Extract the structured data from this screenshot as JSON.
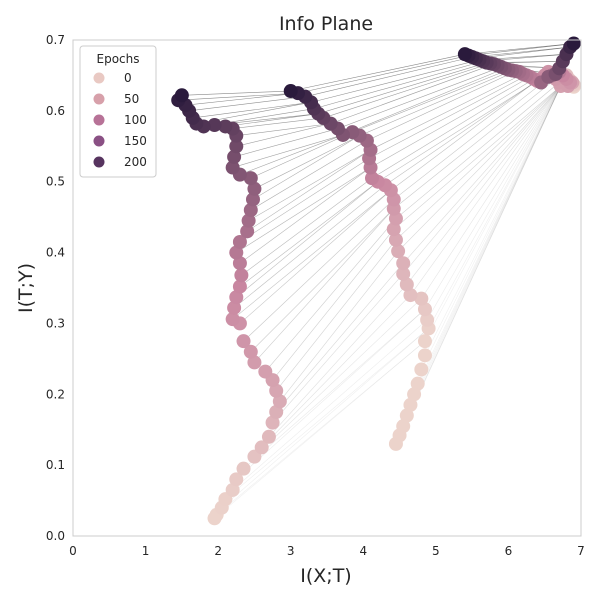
{
  "chart_data": {
    "type": "scatter",
    "title": "Info Plane",
    "xlabel": "I(X;T)",
    "ylabel": "I(T;Y)",
    "xlim": [
      0,
      7
    ],
    "ylim": [
      0,
      0.7
    ],
    "x_ticks": [
      "0",
      "1",
      "2",
      "3",
      "4",
      "5",
      "6",
      "7"
    ],
    "y_ticks": [
      "0.0",
      "0.1",
      "0.2",
      "0.3",
      "0.4",
      "0.5",
      "0.6",
      "0.7"
    ],
    "grid": false,
    "legend": {
      "title": "Epochs",
      "placement": "top-left",
      "entries": [
        {
          "label": "0",
          "color": "#e9c9c3"
        },
        {
          "label": "50",
          "color": "#d7a0aa"
        },
        {
          "label": "100",
          "color": "#b77297"
        },
        {
          "label": "150",
          "color": "#8a5084"
        },
        {
          "label": "200",
          "color": "#57345f"
        }
      ]
    },
    "colors": {
      "epoch_start": "#ecd3cb",
      "epoch_mid": "#c886a0",
      "epoch_end": "#2a1a3c",
      "link_line": "#444444",
      "axes_spine": "#cccccc"
    },
    "epoch_range": [
      0,
      200
    ],
    "series": [
      {
        "layer": 1,
        "points": [
          [
            6.9,
            0.695,
            200
          ],
          [
            6.85,
            0.69,
            190
          ],
          [
            6.8,
            0.68,
            180
          ],
          [
            6.75,
            0.67,
            170
          ],
          [
            6.7,
            0.66,
            160
          ],
          [
            6.65,
            0.652,
            150
          ],
          [
            6.55,
            0.648,
            140
          ],
          [
            6.45,
            0.64,
            130
          ],
          [
            6.6,
            0.65,
            120
          ],
          [
            6.7,
            0.655,
            110
          ],
          [
            6.75,
            0.65,
            100
          ],
          [
            6.8,
            0.645,
            90
          ],
          [
            6.85,
            0.64,
            80
          ],
          [
            6.82,
            0.635,
            70
          ],
          [
            6.88,
            0.64,
            60
          ],
          [
            6.78,
            0.648,
            50
          ],
          [
            6.7,
            0.652,
            40
          ],
          [
            6.8,
            0.65,
            30
          ],
          [
            6.85,
            0.643,
            20
          ],
          [
            6.9,
            0.637,
            10
          ],
          [
            6.9,
            0.634,
            0
          ]
        ]
      },
      {
        "layer": 2,
        "points": [
          [
            5.4,
            0.68,
            200
          ],
          [
            5.45,
            0.678,
            195
          ],
          [
            5.5,
            0.676,
            190
          ],
          [
            5.55,
            0.674,
            185
          ],
          [
            5.6,
            0.672,
            180
          ],
          [
            5.65,
            0.67,
            175
          ],
          [
            5.7,
            0.668,
            170
          ],
          [
            5.75,
            0.667,
            165
          ],
          [
            5.8,
            0.666,
            160
          ],
          [
            5.85,
            0.664,
            155
          ],
          [
            5.9,
            0.662,
            150
          ],
          [
            5.95,
            0.66,
            145
          ],
          [
            6.0,
            0.658,
            140
          ],
          [
            6.05,
            0.657,
            135
          ],
          [
            6.1,
            0.656,
            130
          ],
          [
            6.15,
            0.655,
            125
          ],
          [
            6.2,
            0.652,
            120
          ],
          [
            6.25,
            0.65,
            115
          ],
          [
            6.3,
            0.648,
            110
          ],
          [
            6.35,
            0.645,
            105
          ],
          [
            6.4,
            0.642,
            100
          ],
          [
            6.45,
            0.645,
            95
          ],
          [
            6.5,
            0.65,
            90
          ],
          [
            6.55,
            0.655,
            85
          ],
          [
            6.6,
            0.65,
            80
          ],
          [
            6.65,
            0.645,
            75
          ],
          [
            6.7,
            0.64,
            70
          ],
          [
            6.72,
            0.635,
            65
          ]
        ]
      },
      {
        "layer": 3,
        "points": [
          [
            3.0,
            0.628,
            200
          ],
          [
            3.1,
            0.625,
            194
          ],
          [
            3.2,
            0.62,
            188
          ],
          [
            3.28,
            0.612,
            182
          ],
          [
            3.32,
            0.603,
            176
          ],
          [
            3.38,
            0.596,
            170
          ],
          [
            3.45,
            0.59,
            164
          ],
          [
            3.55,
            0.582,
            158
          ],
          [
            3.65,
            0.575,
            152
          ],
          [
            3.72,
            0.566,
            146
          ],
          [
            3.85,
            0.57,
            140
          ],
          [
            3.95,
            0.565,
            134
          ],
          [
            4.05,
            0.558,
            128
          ],
          [
            4.1,
            0.545,
            122
          ],
          [
            4.08,
            0.533,
            116
          ],
          [
            4.1,
            0.52,
            110
          ],
          [
            4.12,
            0.505,
            104
          ],
          [
            4.2,
            0.5,
            98
          ],
          [
            4.3,
            0.495,
            92
          ],
          [
            4.38,
            0.488,
            86
          ],
          [
            4.42,
            0.475,
            80
          ],
          [
            4.42,
            0.462,
            74
          ],
          [
            4.45,
            0.448,
            68
          ],
          [
            4.42,
            0.433,
            62
          ],
          [
            4.45,
            0.418,
            56
          ],
          [
            4.48,
            0.402,
            50
          ],
          [
            4.55,
            0.385,
            44
          ],
          [
            4.55,
            0.37,
            38
          ],
          [
            4.6,
            0.355,
            32
          ],
          [
            4.65,
            0.34,
            26
          ],
          [
            4.8,
            0.335,
            20
          ],
          [
            4.85,
            0.32,
            14
          ],
          [
            4.88,
            0.305,
            8
          ],
          [
            4.9,
            0.293,
            2
          ],
          [
            4.85,
            0.275,
            0
          ],
          [
            4.85,
            0.255,
            0
          ],
          [
            4.8,
            0.235,
            0
          ],
          [
            4.75,
            0.215,
            0
          ],
          [
            4.7,
            0.2,
            0
          ],
          [
            4.65,
            0.185,
            0
          ],
          [
            4.6,
            0.17,
            0
          ],
          [
            4.55,
            0.155,
            0
          ],
          [
            4.5,
            0.142,
            0
          ],
          [
            4.45,
            0.13,
            0
          ]
        ]
      },
      {
        "layer": 4,
        "points": [
          [
            1.5,
            0.622,
            200
          ],
          [
            1.45,
            0.615,
            196
          ],
          [
            1.55,
            0.608,
            192
          ],
          [
            1.6,
            0.6,
            188
          ],
          [
            1.65,
            0.59,
            184
          ],
          [
            1.7,
            0.582,
            180
          ],
          [
            1.8,
            0.578,
            176
          ],
          [
            1.95,
            0.58,
            172
          ],
          [
            2.1,
            0.578,
            168
          ],
          [
            2.2,
            0.575,
            164
          ],
          [
            2.25,
            0.565,
            160
          ],
          [
            2.25,
            0.55,
            156
          ],
          [
            2.22,
            0.535,
            152
          ],
          [
            2.2,
            0.52,
            148
          ],
          [
            2.3,
            0.51,
            144
          ],
          [
            2.45,
            0.505,
            140
          ],
          [
            2.5,
            0.49,
            136
          ],
          [
            2.48,
            0.475,
            132
          ],
          [
            2.45,
            0.46,
            128
          ],
          [
            2.42,
            0.445,
            124
          ],
          [
            2.4,
            0.43,
            120
          ],
          [
            2.3,
            0.415,
            116
          ],
          [
            2.25,
            0.4,
            112
          ],
          [
            2.3,
            0.385,
            108
          ],
          [
            2.32,
            0.368,
            104
          ],
          [
            2.3,
            0.352,
            100
          ],
          [
            2.25,
            0.337,
            96
          ],
          [
            2.22,
            0.322,
            92
          ],
          [
            2.2,
            0.306,
            88
          ],
          [
            2.3,
            0.3,
            84
          ],
          [
            2.35,
            0.275,
            80
          ],
          [
            2.45,
            0.26,
            76
          ],
          [
            2.5,
            0.245,
            72
          ],
          [
            2.65,
            0.232,
            68
          ],
          [
            2.75,
            0.22,
            64
          ],
          [
            2.8,
            0.205,
            58
          ],
          [
            2.85,
            0.19,
            52
          ],
          [
            2.8,
            0.175,
            46
          ],
          [
            2.75,
            0.16,
            40
          ],
          [
            2.7,
            0.14,
            34
          ],
          [
            2.6,
            0.125,
            28
          ],
          [
            2.5,
            0.112,
            22
          ],
          [
            2.35,
            0.095,
            16
          ],
          [
            2.25,
            0.08,
            12
          ],
          [
            2.2,
            0.065,
            8
          ],
          [
            2.1,
            0.052,
            4
          ],
          [
            2.05,
            0.04,
            2
          ],
          [
            1.98,
            0.03,
            0
          ],
          [
            1.95,
            0.025,
            0
          ]
        ]
      }
    ]
  }
}
